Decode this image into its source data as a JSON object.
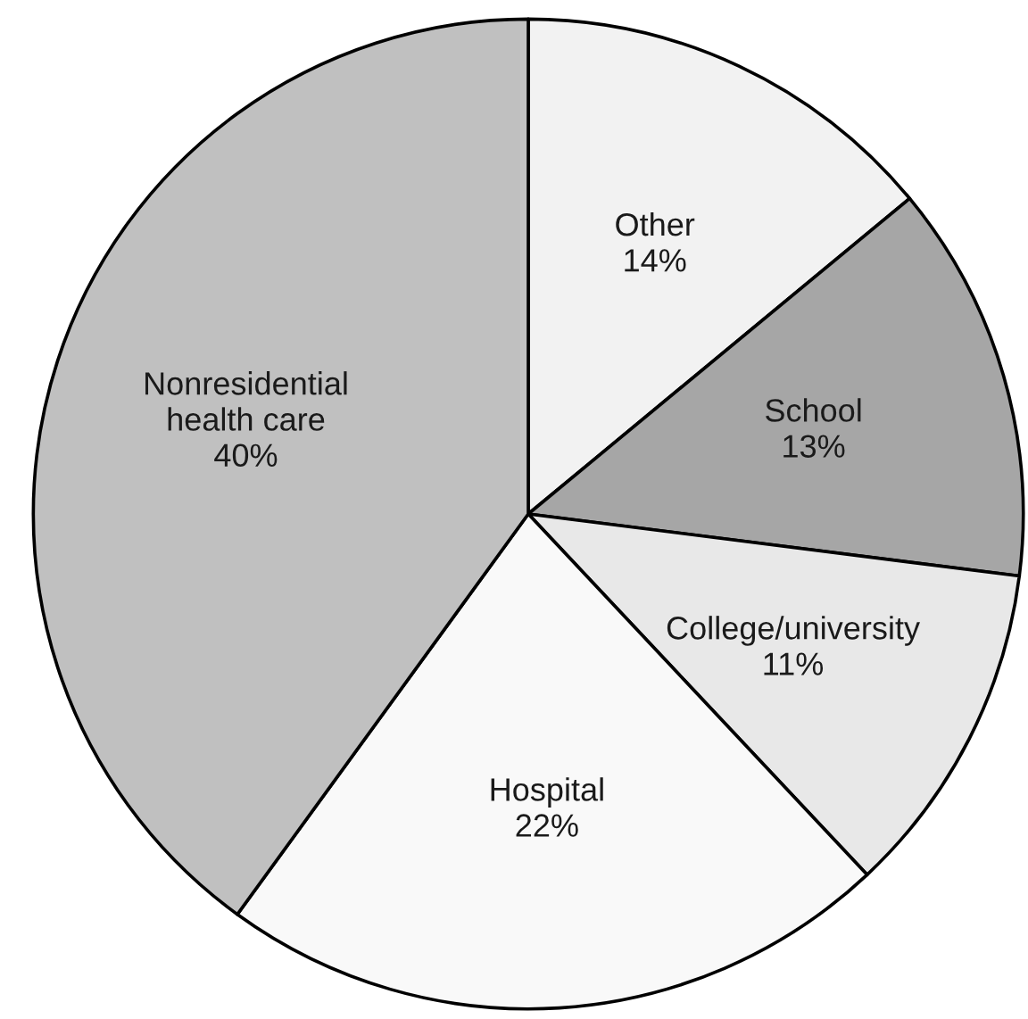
{
  "chart_data": {
    "type": "pie",
    "categories": [
      "Other",
      "School",
      "College/university",
      "Hospital",
      "Nonresidential health care"
    ],
    "values": [
      14,
      13,
      11,
      22,
      40
    ],
    "value_labels": [
      "14%",
      "13%",
      "11%",
      "22%",
      "40%"
    ],
    "colors": [
      "#f2f2f2",
      "#a6a6a6",
      "#e8e8e8",
      "#f9f9f9",
      "#c0c0c0"
    ]
  }
}
